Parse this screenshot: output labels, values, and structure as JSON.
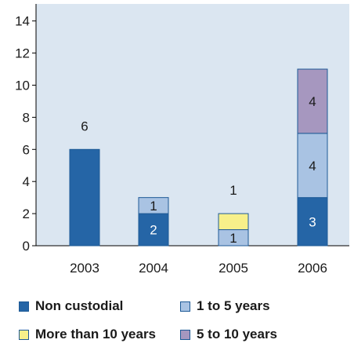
{
  "chart_data": {
    "type": "bar",
    "stacked": true,
    "categories": [
      "2003",
      "2004",
      "2005",
      "2006"
    ],
    "series": [
      {
        "name": "Non custodial",
        "color": "#2565a6",
        "values": [
          6,
          2,
          0,
          3
        ],
        "labels": [
          "",
          "2",
          "",
          "3"
        ]
      },
      {
        "name": "1 to 5 years",
        "color": "#a9c3e3",
        "values": [
          0,
          1,
          1,
          4
        ],
        "labels": [
          "",
          "1",
          "1",
          "4"
        ]
      },
      {
        "name": "More than 10 years",
        "color": "#f7f08a",
        "values": [
          0,
          0,
          1,
          0
        ],
        "labels": [
          "",
          "",
          "",
          ""
        ]
      },
      {
        "name": "5 to 10 years",
        "color": "#a697bf",
        "values": [
          0,
          0,
          0,
          4
        ],
        "labels": [
          "",
          "",
          "",
          "4"
        ]
      }
    ],
    "outside_labels": [
      "6",
      "",
      "1",
      ""
    ],
    "yticks": [
      "0",
      "2",
      "4",
      "6",
      "8",
      "10",
      "12",
      "14"
    ],
    "ylim": [
      0,
      15
    ],
    "background": "#dbe6f1",
    "grid": false,
    "legend_placement": "bottom",
    "legend": [
      "Non custodial",
      "1 to 5 years",
      "More than 10 years",
      "5 to 10 years"
    ]
  }
}
